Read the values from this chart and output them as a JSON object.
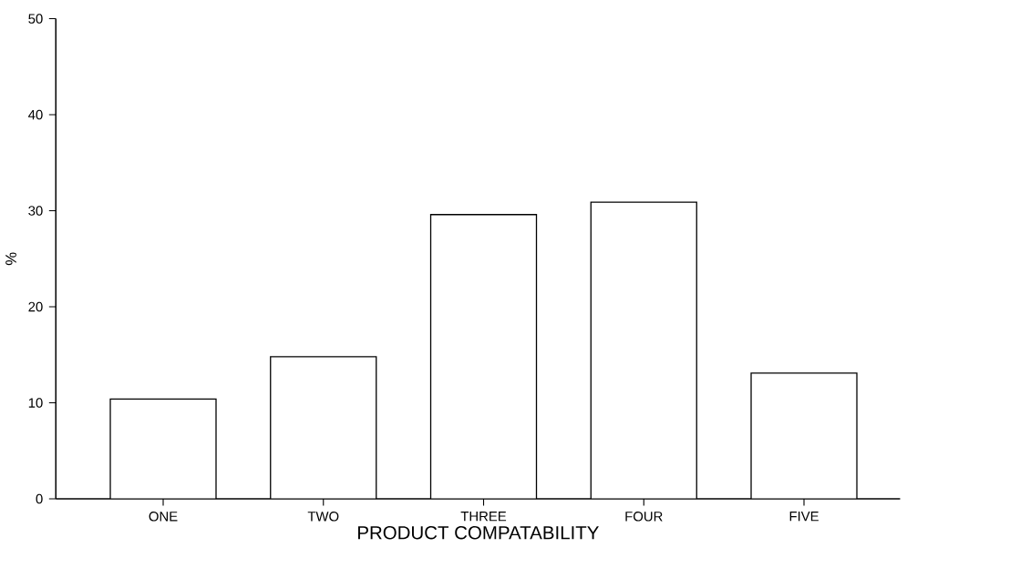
{
  "chart_data": {
    "type": "bar",
    "xlabel": "PRODUCT COMPATABILITY",
    "ylabel": "%",
    "categories": [
      "ONE",
      "TWO",
      "THREE",
      "FOUR",
      "FIVE"
    ],
    "values": [
      10.4,
      14.8,
      29.6,
      30.9,
      13.1
    ],
    "color": "#000000",
    "ylim": [
      0,
      50
    ],
    "yticks": [
      0,
      10,
      20,
      30,
      40,
      50
    ]
  }
}
